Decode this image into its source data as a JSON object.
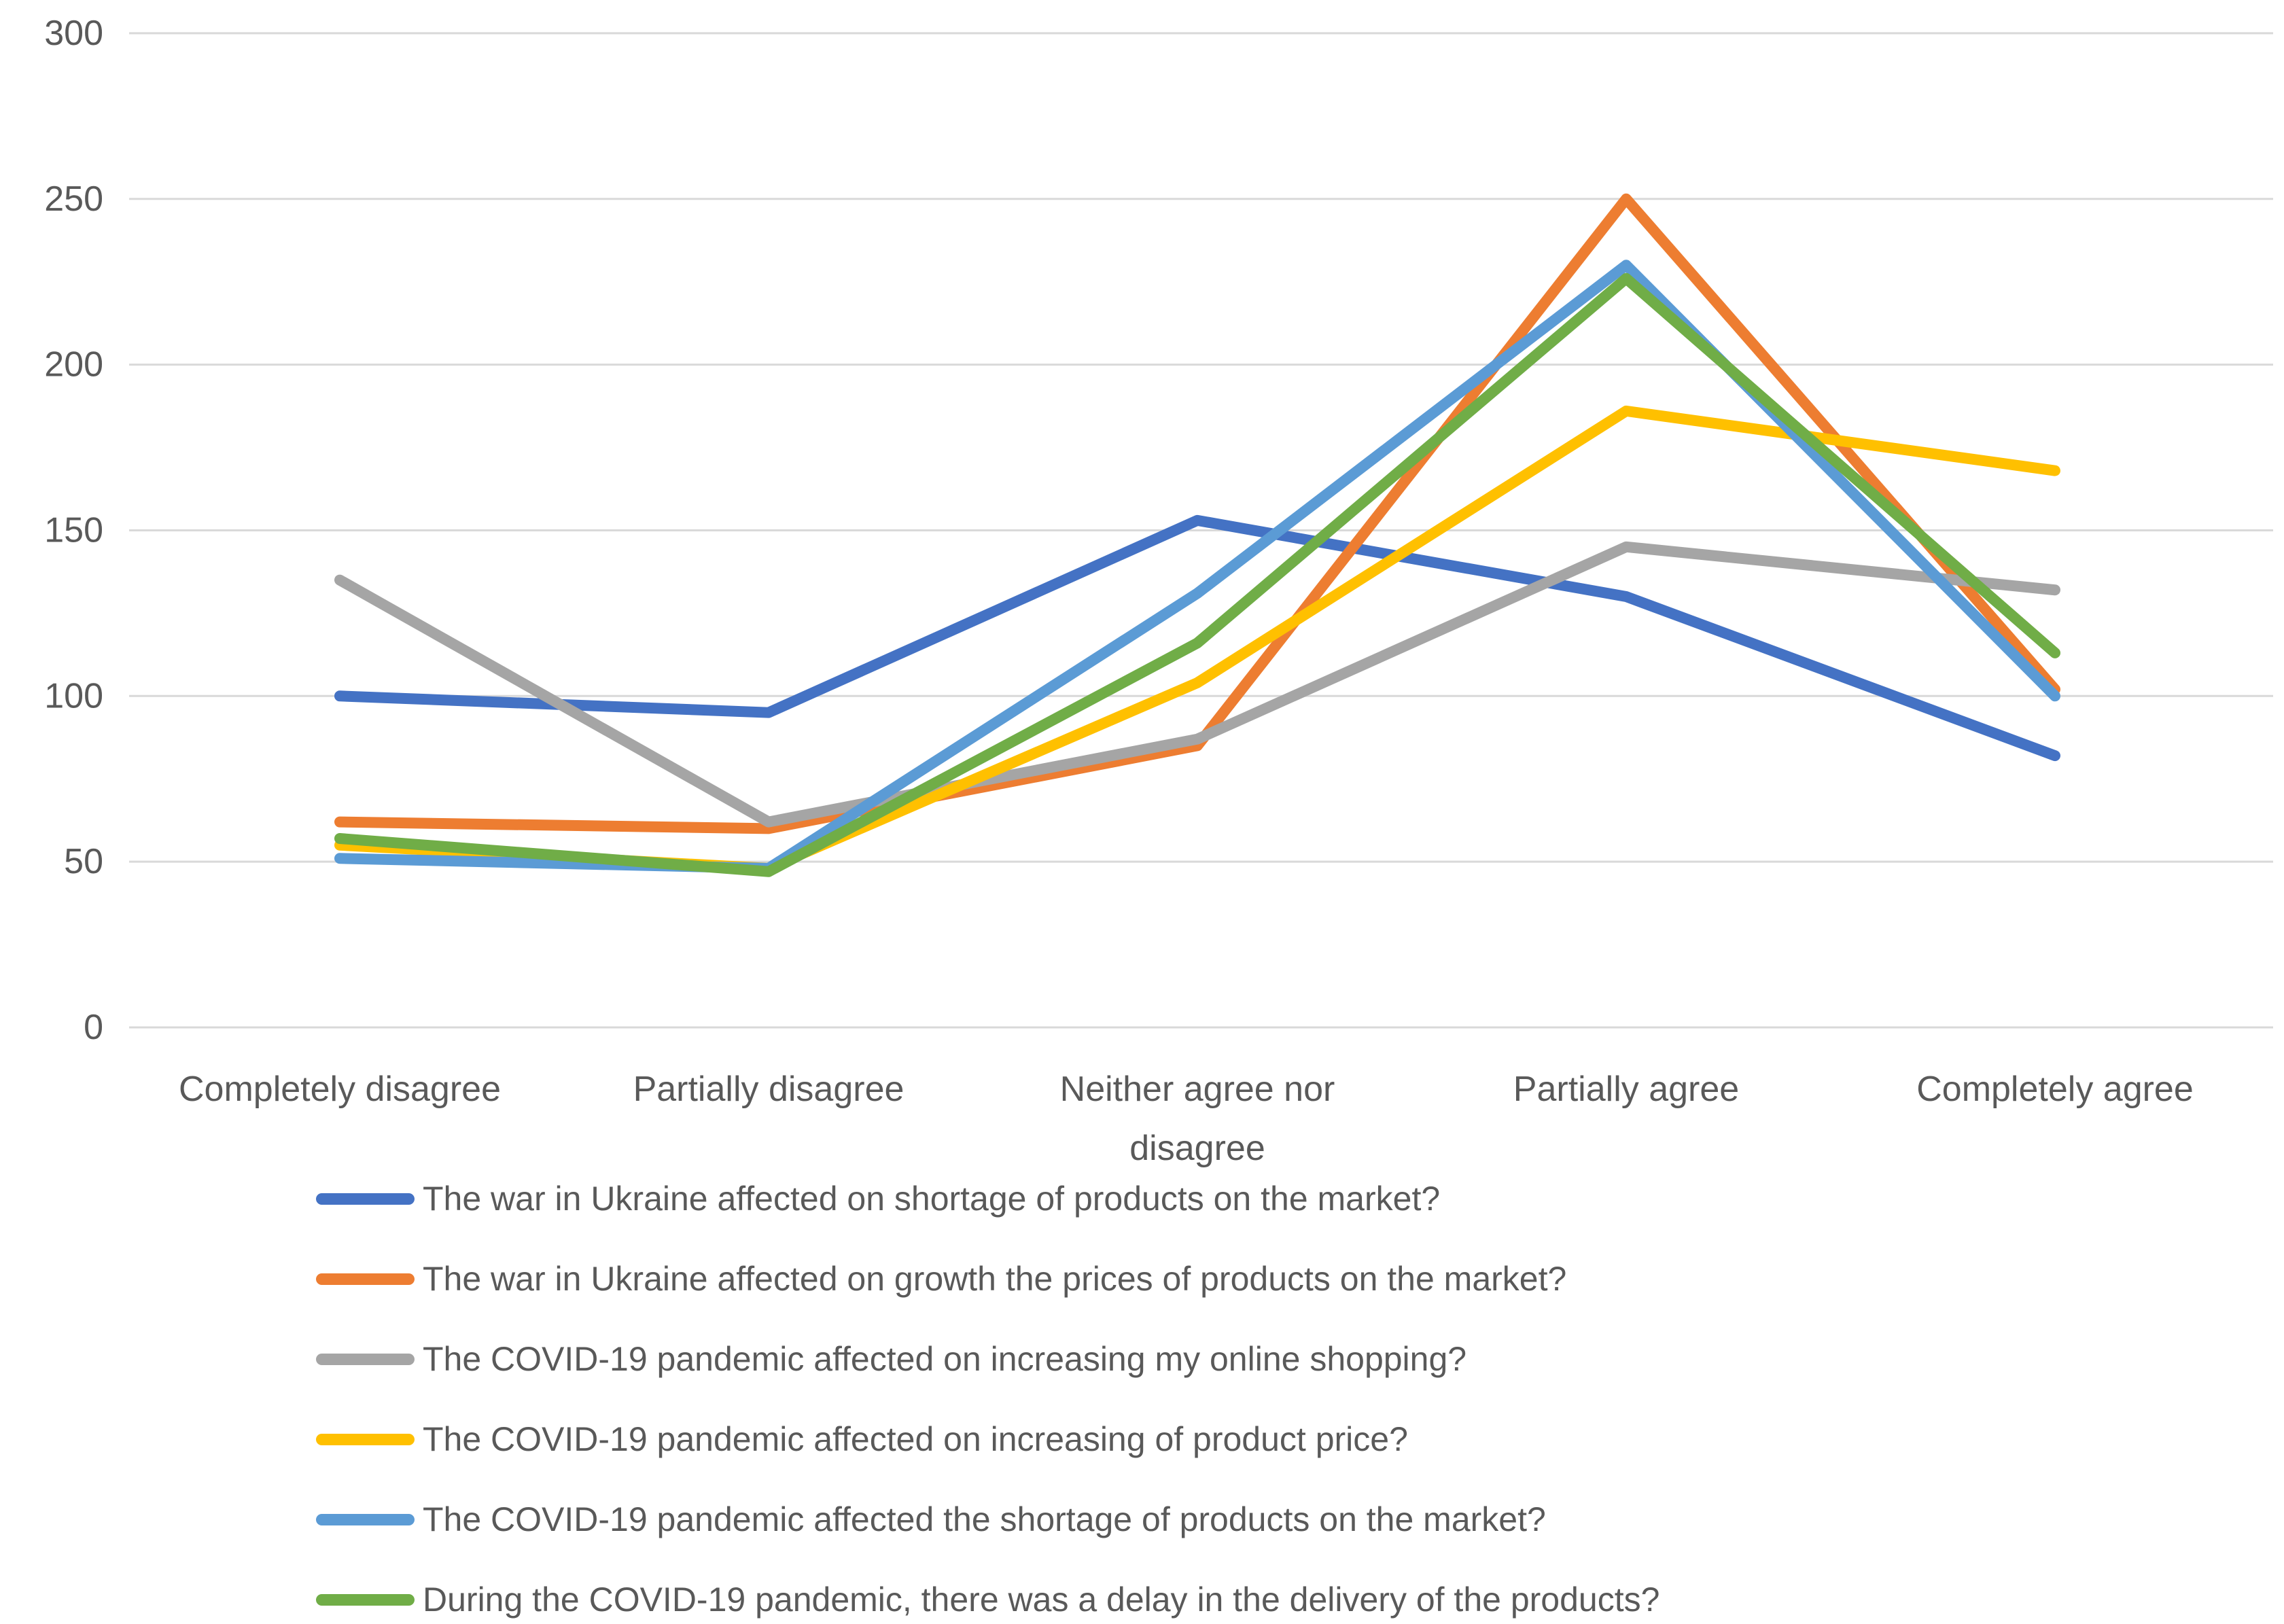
{
  "chart_data": {
    "type": "line",
    "title": "",
    "xlabel": "",
    "ylabel": "",
    "ylim": [
      0,
      300
    ],
    "ytick_step": 50,
    "yticks": [
      "0",
      "50",
      "100",
      "150",
      "200",
      "250",
      "300"
    ],
    "grid": true,
    "legend_position": "bottom-left",
    "gridline_color": "#D9D9D9",
    "text_color": "#595959",
    "background_color": "#FFFFFF",
    "categories": [
      "Completely disagree",
      "Partially disagree",
      "Neither agree nor disagree",
      "Partially agree",
      "Completely agree"
    ],
    "series": [
      {
        "name": "The war in Ukraine affected on shortage of products on the market?",
        "color": "#4472C4",
        "values": [
          100,
          95,
          153,
          130,
          82
        ]
      },
      {
        "name": "The war in Ukraine affected on growth the prices of products on the market?",
        "color": "#ED7D31",
        "values": [
          62,
          60,
          85,
          250,
          102
        ]
      },
      {
        "name": "The COVID-19 pandemic affected on increasing my online shopping?",
        "color": "#A5A5A5",
        "values": [
          135,
          62,
          87,
          145,
          132
        ]
      },
      {
        "name": "The COVID-19 pandemic affected on increasing of product price?",
        "color": "#FFC000",
        "values": [
          55,
          48,
          104,
          186,
          168
        ]
      },
      {
        "name": "The COVID-19 pandemic affected the shortage of products on the market?",
        "color": "#5B9BD5",
        "values": [
          51,
          48,
          131,
          230,
          100
        ]
      },
      {
        "name": "During the COVID-19 pandemic, there was a delay in the delivery of the products?",
        "color": "#70AD47",
        "values": [
          57,
          47,
          116,
          226,
          113
        ]
      }
    ]
  }
}
